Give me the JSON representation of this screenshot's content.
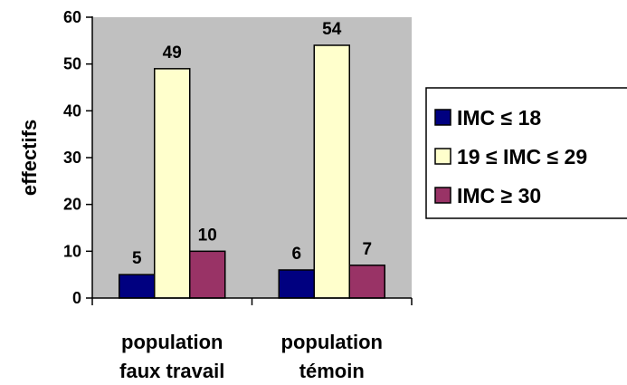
{
  "chart_data": {
    "type": "bar",
    "title": "",
    "xlabel": "",
    "ylabel": "effectifs",
    "ylim": [
      0,
      60
    ],
    "yticks": [
      0,
      10,
      20,
      30,
      40,
      50,
      60
    ],
    "grid": false,
    "plot_background": "#c0c0c0",
    "legend_position": "right",
    "categories": [
      [
        "population",
        "faux travail"
      ],
      [
        "population",
        "témoin"
      ]
    ],
    "series": [
      {
        "name": "IMC ≤ 18",
        "color": "#000080",
        "values": [
          5,
          6
        ]
      },
      {
        "name": "19 ≤ IMC ≤ 29",
        "color": "#ffffcc",
        "values": [
          49,
          54
        ]
      },
      {
        "name": "IMC ≥ 30",
        "color": "#993366",
        "values": [
          10,
          7
        ]
      }
    ]
  }
}
